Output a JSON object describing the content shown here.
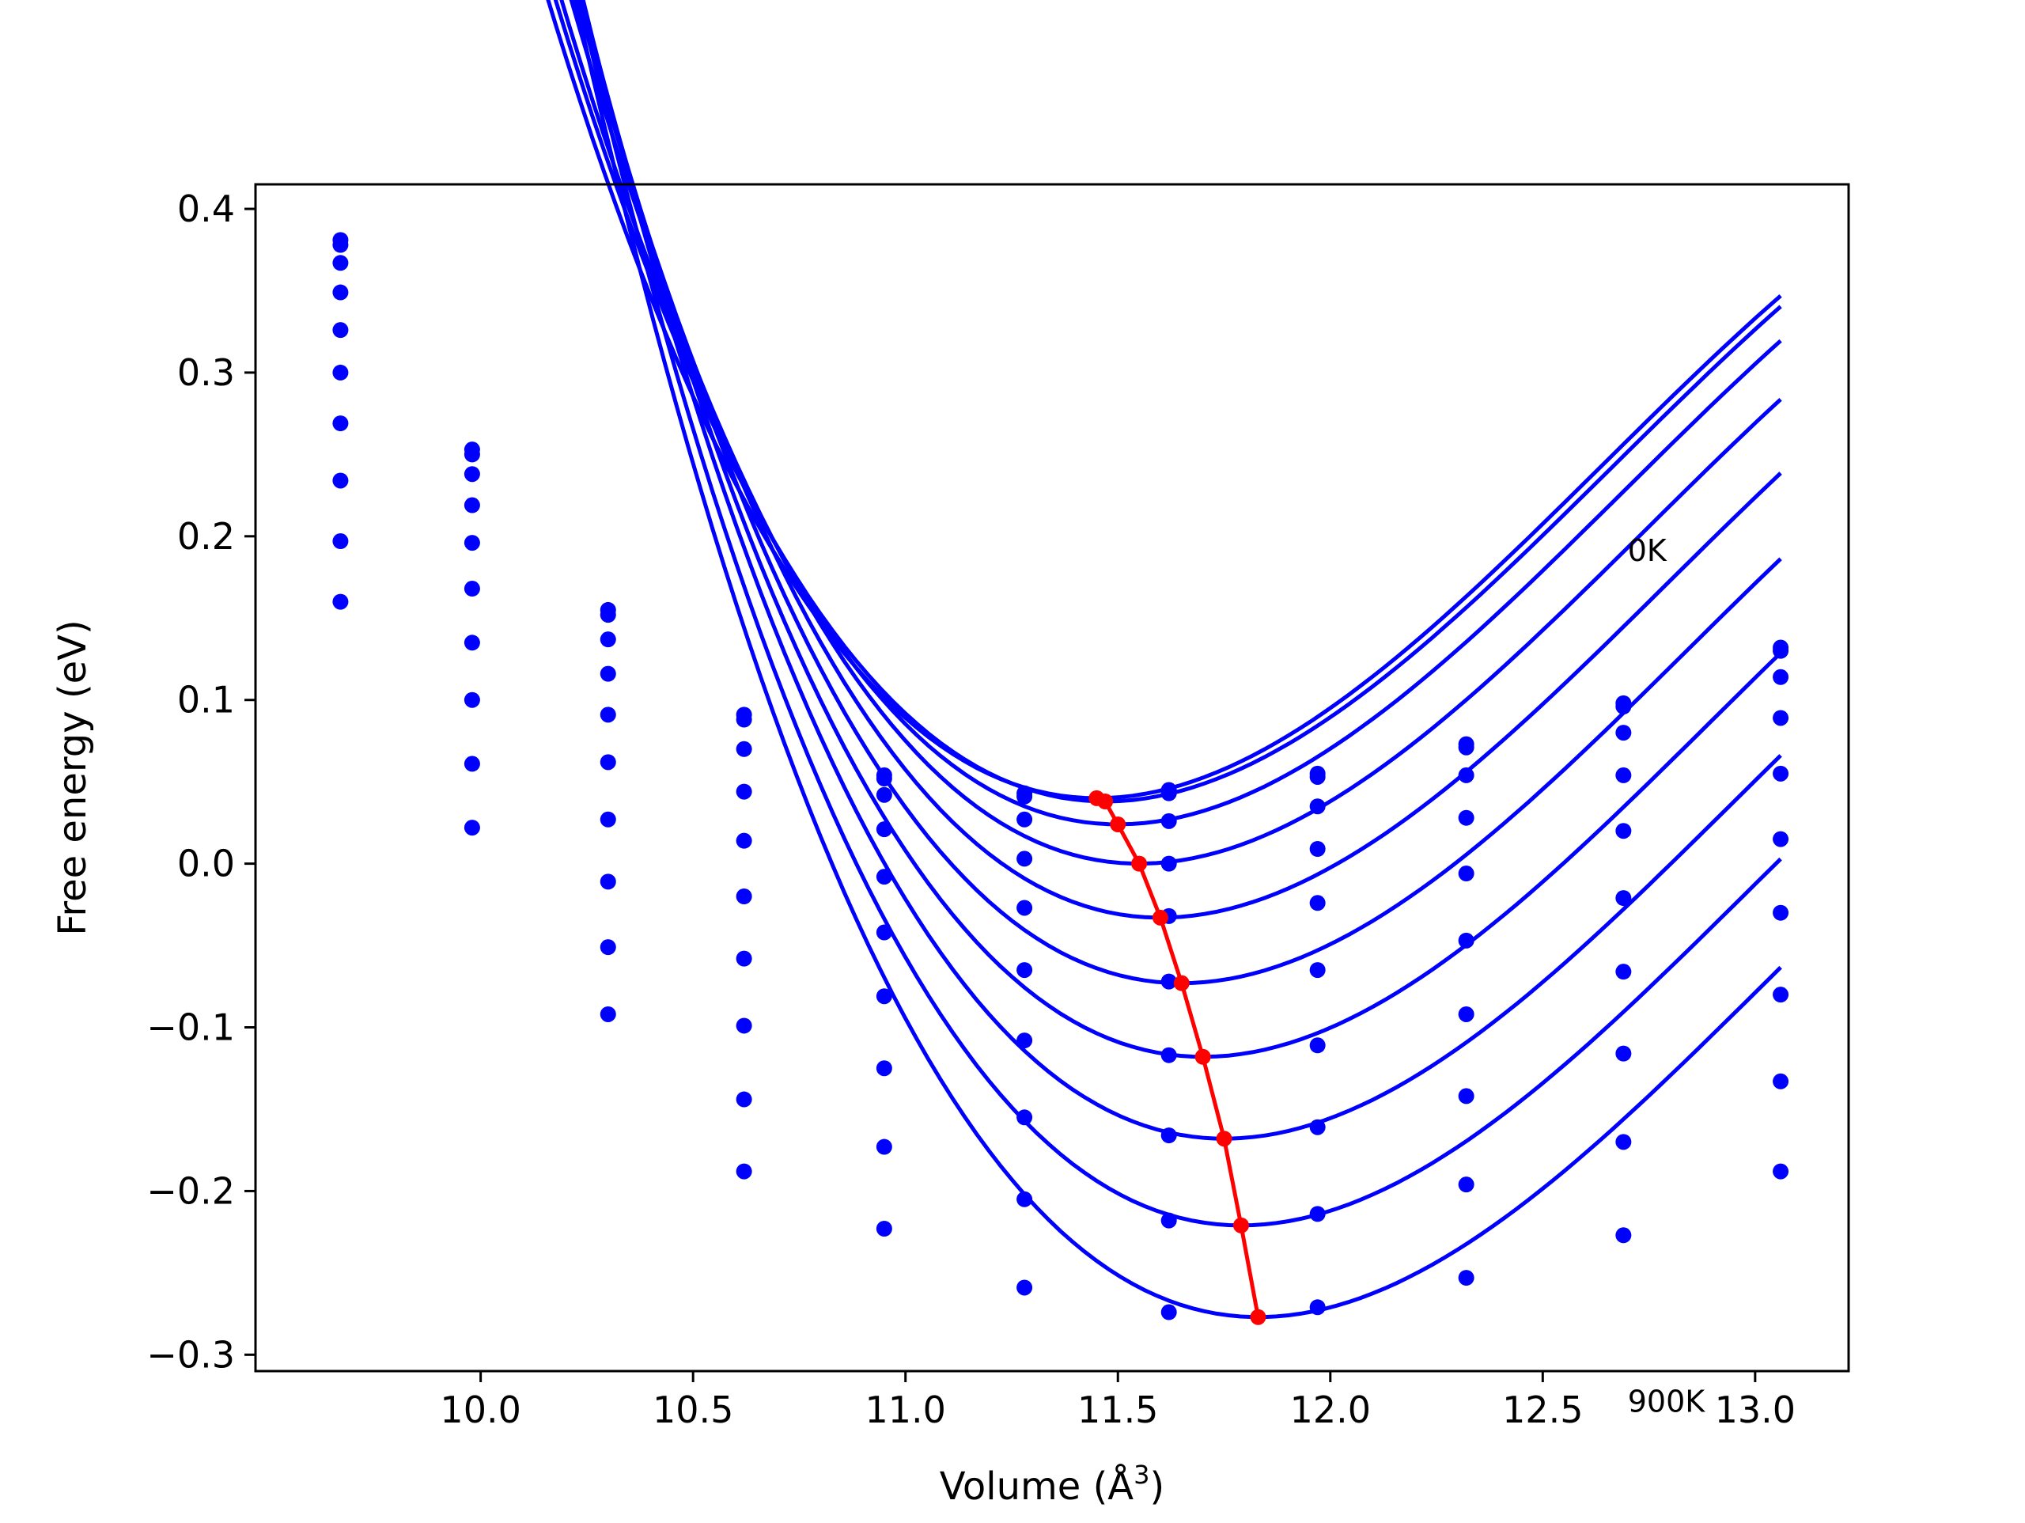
{
  "chart_data": {
    "type": "scatter",
    "xlabel": "Volume (Å",
    "xlabel_sup": "3",
    "xlabel_close": ")",
    "ylabel": "Free energy (eV)",
    "xlim": [
      9.47,
      13.22
    ],
    "ylim": [
      -0.31,
      0.415
    ],
    "xticks": [
      10.0,
      10.5,
      11.0,
      11.5,
      12.0,
      12.5,
      13.0
    ],
    "xtick_labels": [
      "10.0",
      "10.5",
      "11.0",
      "11.5",
      "12.0",
      "12.5",
      "13.0"
    ],
    "yticks": [
      -0.3,
      -0.2,
      -0.1,
      0.0,
      0.1,
      0.2,
      0.3,
      0.4
    ],
    "ytick_labels": [
      "−0.3",
      "−0.2",
      "−0.1",
      "0.0",
      "0.1",
      "0.2",
      "0.3",
      "0.4"
    ],
    "grid": false,
    "legend": "none",
    "annotations": [
      {
        "text": "0K",
        "x": 12.7,
        "y": 0.185
      },
      {
        "text": "900K",
        "x": 12.7,
        "y": -0.335
      }
    ],
    "colors": {
      "fits": "#0000ff",
      "points": "#0000ff",
      "minima": "#ff0000"
    },
    "x": [
      9.67,
      9.98,
      10.3,
      10.62,
      10.95,
      11.28,
      11.62,
      11.97,
      12.32,
      12.69,
      13.06
    ],
    "series": [
      {
        "fit": {
          "vmin": 11.45,
          "fmin": 0.04,
          "a": 0.215,
          "b": -0.06
        },
        "values": [
          0.381,
          0.253,
          0.155,
          0.091,
          0.054,
          0.043,
          0.045,
          0.055,
          0.073,
          0.098,
          0.132
        ]
      },
      {
        "fit": {
          "vmin": 11.47,
          "fmin": 0.038,
          "a": 0.215,
          "b": -0.06
        },
        "values": [
          0.378,
          0.25,
          0.152,
          0.088,
          0.052,
          0.041,
          0.043,
          0.053,
          0.071,
          0.096,
          0.13
        ]
      },
      {
        "fit": {
          "vmin": 11.5,
          "fmin": 0.024,
          "a": 0.215,
          "b": -0.06
        },
        "values": [
          0.367,
          0.238,
          0.137,
          0.07,
          0.042,
          0.027,
          0.026,
          0.035,
          0.054,
          0.08,
          0.114
        ]
      },
      {
        "fit": {
          "vmin": 11.55,
          "fmin": 0.0,
          "a": 0.215,
          "b": -0.06
        },
        "values": [
          0.349,
          0.219,
          0.116,
          0.044,
          0.021,
          0.003,
          0.0,
          0.009,
          0.028,
          0.054,
          0.089
        ]
      },
      {
        "fit": {
          "vmin": 11.6,
          "fmin": -0.033,
          "a": 0.215,
          "b": -0.06
        },
        "values": [
          0.326,
          0.196,
          0.091,
          0.014,
          -0.008,
          -0.027,
          -0.032,
          -0.024,
          -0.006,
          0.02,
          0.055
        ]
      },
      {
        "fit": {
          "vmin": 11.65,
          "fmin": -0.073,
          "a": 0.215,
          "b": -0.06
        },
        "values": [
          0.3,
          0.168,
          0.062,
          -0.02,
          -0.042,
          -0.065,
          -0.072,
          -0.065,
          -0.047,
          -0.021,
          0.015
        ]
      },
      {
        "fit": {
          "vmin": 11.7,
          "fmin": -0.118,
          "a": 0.215,
          "b": -0.06
        },
        "values": [
          0.269,
          0.135,
          0.027,
          -0.058,
          -0.081,
          -0.108,
          -0.117,
          -0.111,
          -0.092,
          -0.066,
          -0.03
        ]
      },
      {
        "fit": {
          "vmin": 11.75,
          "fmin": -0.168,
          "a": 0.215,
          "b": -0.06
        },
        "values": [
          0.234,
          0.1,
          -0.011,
          -0.099,
          -0.125,
          -0.155,
          -0.166,
          -0.161,
          -0.142,
          -0.116,
          -0.08
        ]
      },
      {
        "fit": {
          "vmin": 11.79,
          "fmin": -0.221,
          "a": 0.215,
          "b": -0.06
        },
        "values": [
          0.197,
          0.061,
          -0.051,
          -0.144,
          -0.173,
          -0.205,
          -0.218,
          -0.214,
          -0.196,
          -0.17,
          -0.133
        ]
      },
      {
        "fit": {
          "vmin": 11.83,
          "fmin": -0.277,
          "a": 0.215,
          "b": -0.06
        },
        "values": [
          0.16,
          0.022,
          -0.092,
          -0.188,
          -0.223,
          -0.259,
          -0.274,
          -0.271,
          -0.253,
          -0.227,
          -0.188
        ]
      }
    ],
    "minima": {
      "x": [
        11.45,
        11.47,
        11.5,
        11.55,
        11.6,
        11.65,
        11.7,
        11.75,
        11.79,
        11.83
      ],
      "y": [
        0.04,
        0.038,
        0.024,
        0.0,
        -0.033,
        -0.073,
        -0.118,
        -0.168,
        -0.221,
        -0.277
      ]
    }
  }
}
